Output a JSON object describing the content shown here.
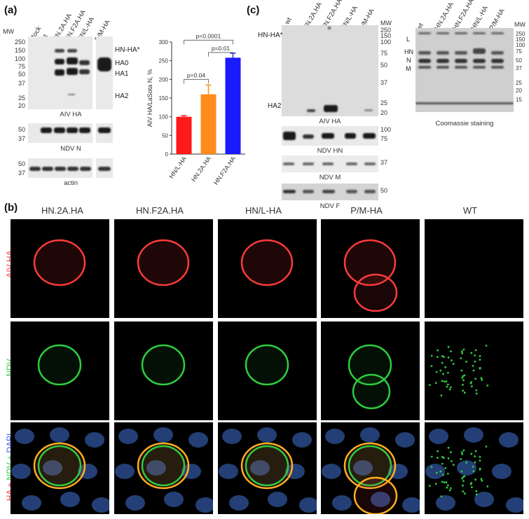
{
  "panel_labels": {
    "a": "(a)",
    "b": "(b)",
    "c": "(c)"
  },
  "panel_a": {
    "mw_header": "MW",
    "lanes": [
      "Mock",
      "wt",
      "HN.2A.HA",
      "HN.F2A.HA",
      "HN/L-HA",
      "P/M-HA"
    ],
    "mw_markers_ha": [
      "250",
      "150",
      "100",
      "75",
      "50",
      "37",
      "25",
      "20"
    ],
    "band_labels": [
      "HN-HA*",
      "HA0",
      "HA1",
      "HA2"
    ],
    "blot_captions": [
      "AIV HA",
      "NDV N",
      "actin"
    ],
    "mw_markers_n": [
      "50",
      "37"
    ],
    "mw_markers_actin": [
      "50",
      "37"
    ]
  },
  "chart_data": {
    "type": "bar",
    "categories": [
      "HN/L-HA",
      "HN.2A.HA",
      "HN.F2A.HA"
    ],
    "values": [
      100,
      160,
      258
    ],
    "errors": [
      3,
      25,
      12
    ],
    "colors": [
      "#ff1a1a",
      "#ff8c1a",
      "#1a1aff"
    ],
    "ylabel": "AIV HA/LaSota N, %",
    "ylim": [
      0,
      300
    ],
    "yticks": [
      "0",
      "50",
      "100",
      "150",
      "200",
      "250",
      "300"
    ],
    "annotations": [
      "p<0.0001",
      "p=0.01",
      "p=0.04"
    ]
  },
  "panel_c": {
    "lanes": [
      "wt",
      "HN.2A.HA",
      "HN.F2A.HA",
      "HN/L-HA",
      "P/M-HA"
    ],
    "mw_header": "MW",
    "mw_main": [
      "250",
      "150",
      "100",
      "75",
      "50",
      "37",
      "25",
      "20"
    ],
    "band_labels": [
      "HN-HA*",
      "HA2"
    ],
    "captions": [
      "AIV HA",
      "NDV HN",
      "NDV M",
      "NDV F"
    ],
    "mw_hn": [
      "100",
      "75"
    ],
    "mw_m": [
      "37"
    ],
    "mw_f": [
      "50"
    ],
    "coomassie_lanes": [
      "wt",
      "HN.2A.HA",
      "HN.F2A.HA",
      "HN/L-HA",
      "P/M-HA"
    ],
    "coomassie_mw": [
      "250",
      "150",
      "100",
      "75",
      "50",
      "37",
      "25",
      "20",
      "15"
    ],
    "coomassie_bands": [
      "L",
      "HN",
      "N",
      "M"
    ],
    "coomassie_caption": "Coomassie staining"
  },
  "panel_b": {
    "columns": [
      "HN.2A.HA",
      "HN.F2A.HA",
      "HN/L-HA",
      "P/M-HA",
      "WT"
    ],
    "rows": [
      {
        "label": "AIV HA",
        "color": "#ff3b3b"
      },
      {
        "label": "NDV",
        "color": "#2ecc40"
      },
      {
        "label_parts": [
          "HA",
          " + ",
          "NDV",
          " + ",
          "DAPI"
        ],
        "colors": [
          "#ff3b3b",
          "#ff3b3b",
          "#2ecc40",
          "#2ecc40",
          "#3b5bff"
        ]
      }
    ]
  }
}
